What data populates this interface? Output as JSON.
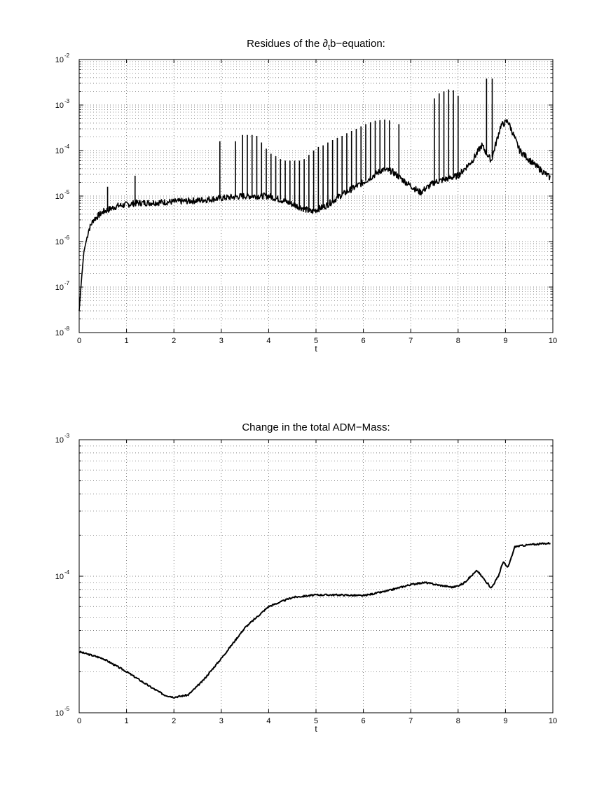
{
  "chart_data": [
    {
      "type": "line",
      "title_parts": {
        "before": "Residues of the ",
        "symbol": "∂",
        "subscript": "t",
        "after": "b−equation:"
      },
      "xlabel": "t",
      "ylabel": "",
      "xlim": [
        0,
        10
      ],
      "ylim": [
        1e-08,
        0.01
      ],
      "yscale": "log",
      "grid": true,
      "x_ticks": [
        0,
        1,
        2,
        3,
        4,
        5,
        6,
        7,
        8,
        9,
        10
      ],
      "y_ticks": [
        {
          "base": "10",
          "exp": "-8",
          "value": 1e-08
        },
        {
          "base": "10",
          "exp": "-7",
          "value": 1e-07
        },
        {
          "base": "10",
          "exp": "-6",
          "value": 1e-06
        },
        {
          "base": "10",
          "exp": "-5",
          "value": 1e-05
        },
        {
          "base": "10",
          "exp": "-4",
          "value": 0.0001
        },
        {
          "base": "10",
          "exp": "-3",
          "value": 0.001
        },
        {
          "base": "10",
          "exp": "-2",
          "value": 0.01
        }
      ],
      "series": [
        {
          "color": "#000000",
          "baseline": [
            [
              0,
              3e-08
            ],
            [
              0.05,
              1.5e-07
            ],
            [
              0.1,
              6e-07
            ],
            [
              0.2,
              1.8e-06
            ],
            [
              0.3,
              3e-06
            ],
            [
              0.5,
              4.5e-06
            ],
            [
              0.8,
              6e-06
            ],
            [
              1.2,
              7e-06
            ],
            [
              1.6,
              7.2e-06
            ],
            [
              2.0,
              7.5e-06
            ],
            [
              2.5,
              8e-06
            ],
            [
              3.0,
              9e-06
            ],
            [
              3.5,
              1e-05
            ],
            [
              4.0,
              1e-05
            ],
            [
              4.3,
              8e-06
            ],
            [
              4.7,
              5.5e-06
            ],
            [
              4.9,
              4.5e-06
            ],
            [
              5.2,
              6e-06
            ],
            [
              5.5,
              1e-05
            ],
            [
              6.0,
              2e-05
            ],
            [
              6.4,
              3.8e-05
            ],
            [
              6.6,
              3.5e-05
            ],
            [
              6.9,
              2e-05
            ],
            [
              7.2,
              1.2e-05
            ],
            [
              7.5,
              2e-05
            ],
            [
              8.0,
              2.8e-05
            ],
            [
              8.3,
              6e-05
            ],
            [
              8.5,
              0.00013
            ],
            [
              8.7,
              6e-05
            ],
            [
              8.9,
              0.00035
            ],
            [
              9.05,
              0.00045
            ],
            [
              9.3,
              0.0001
            ],
            [
              9.6,
              5e-05
            ],
            [
              9.95,
              2.5e-05
            ]
          ],
          "spikes": [
            [
              0.6,
              1.6e-05
            ],
            [
              1.18,
              2.8e-05
            ],
            [
              2.97,
              0.00016
            ],
            [
              3.3,
              0.00016
            ],
            [
              3.45,
              0.00022
            ],
            [
              3.55,
              0.00022
            ],
            [
              3.65,
              0.00022
            ],
            [
              3.75,
              0.00021
            ],
            [
              3.85,
              0.00015
            ],
            [
              3.95,
              0.00011
            ],
            [
              4.05,
              8.5e-05
            ],
            [
              4.15,
              7.5e-05
            ],
            [
              4.25,
              6.5e-05
            ],
            [
              4.35,
              6e-05
            ],
            [
              4.45,
              6e-05
            ],
            [
              4.55,
              6e-05
            ],
            [
              4.65,
              6e-05
            ],
            [
              4.75,
              6.5e-05
            ],
            [
              4.85,
              8e-05
            ],
            [
              4.95,
              0.0001
            ],
            [
              5.05,
              0.00012
            ],
            [
              5.15,
              0.00013
            ],
            [
              5.25,
              0.00015
            ],
            [
              5.35,
              0.00017
            ],
            [
              5.45,
              0.00019
            ],
            [
              5.55,
              0.00021
            ],
            [
              5.65,
              0.00024
            ],
            [
              5.75,
              0.00027
            ],
            [
              5.85,
              0.0003
            ],
            [
              5.95,
              0.00034
            ],
            [
              6.05,
              0.00038
            ],
            [
              6.15,
              0.00042
            ],
            [
              6.25,
              0.00045
            ],
            [
              6.35,
              0.00047
            ],
            [
              6.45,
              0.00048
            ],
            [
              6.55,
              0.00046
            ],
            [
              6.75,
              0.00038
            ],
            [
              7.5,
              0.0014
            ],
            [
              7.6,
              0.0018
            ],
            [
              7.7,
              0.002
            ],
            [
              7.8,
              0.0022
            ],
            [
              7.9,
              0.0021
            ],
            [
              8.0,
              0.0016
            ],
            [
              8.6,
              0.0038
            ],
            [
              8.72,
              0.0038
            ]
          ]
        }
      ]
    },
    {
      "type": "line",
      "title": "Change in the total ADM−Mass:",
      "xlabel": "t",
      "ylabel": "",
      "xlim": [
        0,
        10
      ],
      "ylim": [
        1e-05,
        0.001
      ],
      "yscale": "log",
      "grid": true,
      "x_ticks": [
        0,
        1,
        2,
        3,
        4,
        5,
        6,
        7,
        8,
        9,
        10
      ],
      "y_ticks": [
        {
          "base": "10",
          "exp": "-5",
          "value": 1e-05
        },
        {
          "base": "10",
          "exp": "-4",
          "value": 0.0001
        },
        {
          "base": "10",
          "exp": "-3",
          "value": 0.001
        }
      ],
      "series": [
        {
          "color": "#000000",
          "points": [
            [
              0,
              2.8e-05
            ],
            [
              0.5,
              2.5e-05
            ],
            [
              1.0,
              2e-05
            ],
            [
              1.5,
              1.55e-05
            ],
            [
              1.8,
              1.35e-05
            ],
            [
              2.0,
              1.3e-05
            ],
            [
              2.3,
              1.35e-05
            ],
            [
              2.6,
              1.7e-05
            ],
            [
              3.0,
              2.5e-05
            ],
            [
              3.5,
              4.2e-05
            ],
            [
              4.0,
              6e-05
            ],
            [
              4.5,
              7e-05
            ],
            [
              5.0,
              7.3e-05
            ],
            [
              5.5,
              7.3e-05
            ],
            [
              6.0,
              7.2e-05
            ],
            [
              6.5,
              7.8e-05
            ],
            [
              7.0,
              8.7e-05
            ],
            [
              7.3,
              9e-05
            ],
            [
              7.6,
              8.6e-05
            ],
            [
              7.9,
              8.3e-05
            ],
            [
              8.1,
              8.8e-05
            ],
            [
              8.4,
              0.00011
            ],
            [
              8.55,
              9.5e-05
            ],
            [
              8.7,
              8.2e-05
            ],
            [
              8.85,
              0.0001
            ],
            [
              8.95,
              0.000128
            ],
            [
              9.05,
              0.000115
            ],
            [
              9.2,
              0.000165
            ],
            [
              9.5,
              0.00017
            ],
            [
              9.95,
              0.000175
            ]
          ]
        }
      ]
    }
  ]
}
